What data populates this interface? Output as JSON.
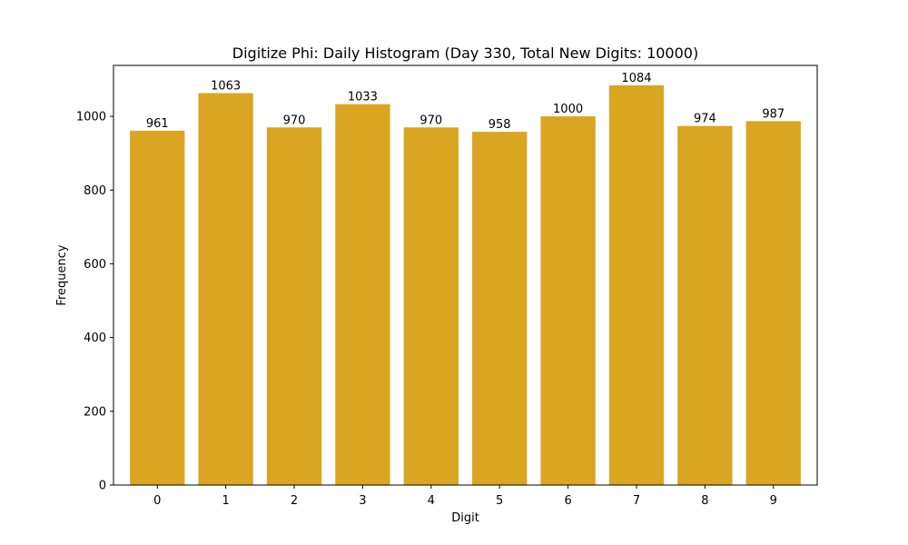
{
  "chart_data": {
    "type": "bar",
    "title": "Digitize Phi: Daily Histogram (Day 330, Total New Digits: 10000)",
    "xlabel": "Digit",
    "ylabel": "Frequency",
    "categories": [
      "0",
      "1",
      "2",
      "3",
      "4",
      "5",
      "6",
      "7",
      "8",
      "9"
    ],
    "values": [
      961,
      1063,
      970,
      1033,
      970,
      958,
      1000,
      1084,
      974,
      987
    ],
    "data_labels": [
      "961",
      "1063",
      "970",
      "1033",
      "970",
      "958",
      "1000",
      "1084",
      "974",
      "987"
    ],
    "ylim": [
      0,
      1138.2
    ],
    "yticks": [
      0,
      200,
      400,
      600,
      800,
      1000
    ],
    "ytick_labels": [
      "0",
      "200",
      "400",
      "600",
      "800",
      "1000"
    ],
    "bar_color": "#DAA520",
    "grid": false,
    "legend": "none"
  }
}
